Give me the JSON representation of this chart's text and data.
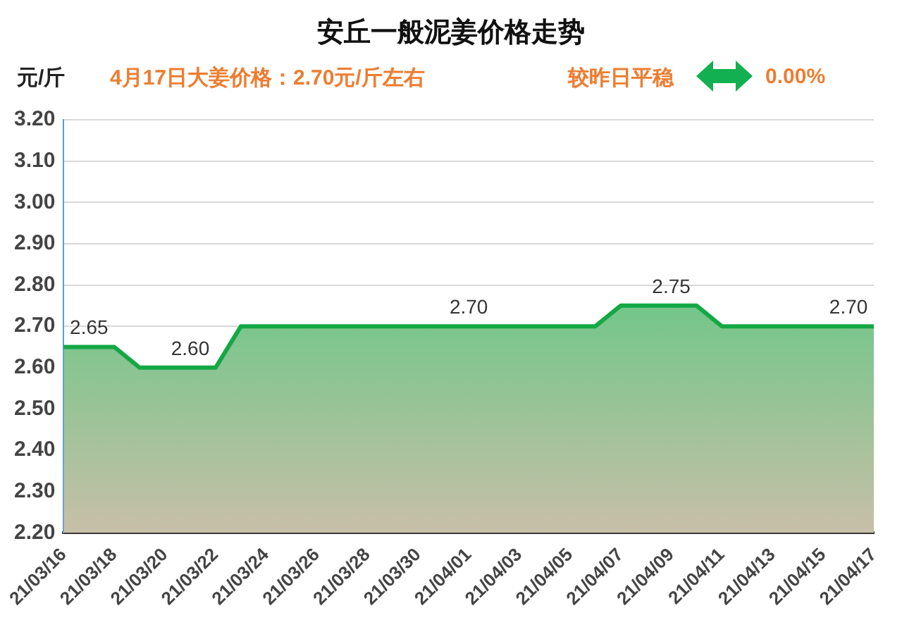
{
  "chart_data": {
    "type": "area",
    "title": "安丘一般泥姜价格走势",
    "subtitle": "4月17日大姜价格：2.70元/斤左右",
    "ylabel": "元/斤",
    "annotations": [
      "较昨日平稳",
      "0.00%"
    ],
    "categories": [
      "21/03/16",
      null,
      "21/03/18",
      null,
      "21/03/20",
      null,
      "21/03/22",
      null,
      "21/03/24",
      null,
      "21/03/26",
      null,
      "21/03/28",
      null,
      "21/03/30",
      null,
      "21/04/01",
      null,
      "21/04/03",
      null,
      "21/04/05",
      null,
      "21/04/07",
      null,
      "21/04/09",
      null,
      "21/04/11",
      null,
      "21/04/13",
      null,
      "21/04/15",
      null,
      "21/04/17"
    ],
    "series": [
      {
        "color": "#14a845",
        "values": [
          2.65,
          2.65,
          2.65,
          2.6,
          2.6,
          2.6,
          2.6,
          2.7,
          2.7,
          2.7,
          2.7,
          2.7,
          2.7,
          2.7,
          2.7,
          2.7,
          2.7,
          2.7,
          2.7,
          2.7,
          2.7,
          2.7,
          2.75,
          2.75,
          2.75,
          2.75,
          2.7,
          2.7,
          2.7,
          2.7,
          2.7,
          2.7,
          2.7
        ],
        "value_labels": [
          null,
          "2.65",
          null,
          null,
          null,
          "2.60",
          null,
          null,
          null,
          null,
          null,
          null,
          null,
          null,
          null,
          null,
          "2.70",
          null,
          null,
          null,
          null,
          null,
          null,
          null,
          "2.75",
          null,
          null,
          null,
          null,
          null,
          null,
          "2.70",
          null
        ]
      }
    ],
    "ylim": [
      2.2,
      3.2
    ],
    "yticks": [
      {
        "value": 2.2,
        "label": "2.20"
      },
      {
        "value": 2.3,
        "label": "2.30"
      },
      {
        "value": 2.4,
        "label": "2.40"
      },
      {
        "value": 2.5,
        "label": "2.50"
      },
      {
        "value": 2.6,
        "label": "2.60"
      },
      {
        "value": 2.7,
        "label": "2.70"
      },
      {
        "value": 2.8,
        "label": "2.80"
      },
      {
        "value": 2.9,
        "label": "2.90"
      },
      {
        "value": 3.0,
        "label": "3.00"
      },
      {
        "value": 3.1,
        "label": "3.10"
      },
      {
        "value": 3.2,
        "label": "3.20"
      }
    ],
    "grid": "y",
    "legend": false,
    "marker": "none"
  }
}
